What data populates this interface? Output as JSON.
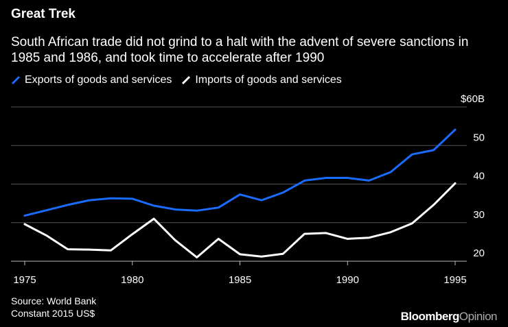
{
  "header": {
    "title": "Great Trek",
    "subtitle": "South African trade did not grind to a halt with the advent of severe sanctions in 1985 and 1986, and took time to accelerate after 1990"
  },
  "legend": {
    "exports_label": "Exports of goods and services",
    "imports_label": "Imports of goods and services"
  },
  "footer": {
    "source": "Source: World Bank",
    "note": "Constant 2015 US$"
  },
  "brand": {
    "part1": "Bloomberg",
    "part2": "Opinion"
  },
  "colors": {
    "exports": "#1a6cff",
    "imports": "#ffffff",
    "grid": "#555555",
    "background": "#000000"
  },
  "chart_data": {
    "type": "line",
    "title": "Great Trek",
    "xlabel": "",
    "ylabel": "",
    "x": [
      1975,
      1976,
      1977,
      1978,
      1979,
      1980,
      1981,
      1982,
      1983,
      1984,
      1985,
      1986,
      1987,
      1988,
      1989,
      1990,
      1991,
      1992,
      1993,
      1994,
      1995
    ],
    "xticks": [
      1975,
      1980,
      1985,
      1990,
      1995
    ],
    "xlim": [
      1975,
      1995
    ],
    "yticks": [
      20,
      30,
      40,
      50,
      60
    ],
    "ytick_labels": [
      "20",
      "30",
      "40",
      "50",
      "$60B"
    ],
    "ylim": [
      17,
      60
    ],
    "series": [
      {
        "name": "Exports of goods and services",
        "values": [
          31.8,
          33.2,
          34.6,
          35.8,
          36.3,
          36.2,
          34.4,
          33.4,
          33.1,
          33.9,
          37.3,
          35.8,
          37.8,
          40.9,
          41.6,
          41.6,
          40.9,
          43.1,
          47.7,
          48.8,
          54.1
        ]
      },
      {
        "name": "Imports of goods and services",
        "values": [
          29.6,
          26.7,
          23.1,
          23.0,
          22.8,
          27.0,
          31.0,
          25.4,
          21.0,
          25.8,
          21.8,
          21.2,
          21.9,
          27.1,
          27.3,
          25.8,
          26.1,
          27.5,
          29.8,
          34.6,
          40.2
        ]
      }
    ]
  }
}
